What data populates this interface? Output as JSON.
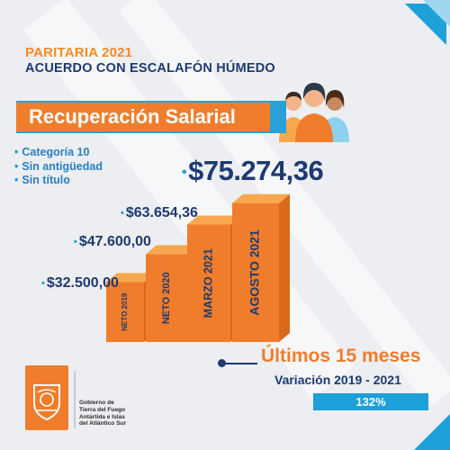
{
  "header": {
    "title": "PARITARIA 2021",
    "subtitle": "ACUERDO CON ESCALAFÓN HÚMEDO"
  },
  "banner": {
    "label": "Recuperación Salarial"
  },
  "conditions": [
    "Categoría 10",
    "Sin antigüedad",
    "Sin título"
  ],
  "chart_data": {
    "type": "bar",
    "categories": [
      "NETO 2019",
      "NETO 2020",
      "MARZO 2021",
      "AGOSTO 2021"
    ],
    "values": [
      32500.0,
      47600.0,
      63654.36,
      75274.36
    ],
    "value_labels": [
      "$32.500,00",
      "$47.600,00",
      "$63.654,36",
      "$75.274,36"
    ],
    "title": "",
    "xlabel": "",
    "ylabel": "",
    "ylim": [
      0,
      80000
    ],
    "grid": false,
    "legend": "none"
  },
  "summary": {
    "headline": "Últimos 15 meses",
    "period": "Variación 2019 - 2021",
    "percentage": "132%"
  },
  "footer": {
    "government": "Gobierno de\nTierra del Fuego\nAntártida e Islas\ndel Atlántico Sur"
  },
  "colors": {
    "orange": "#f07d2c",
    "orange_light": "#f7a84e",
    "orange_dark": "#d96a1b",
    "navy": "#1e3a70",
    "blue": "#1ea0d8"
  }
}
